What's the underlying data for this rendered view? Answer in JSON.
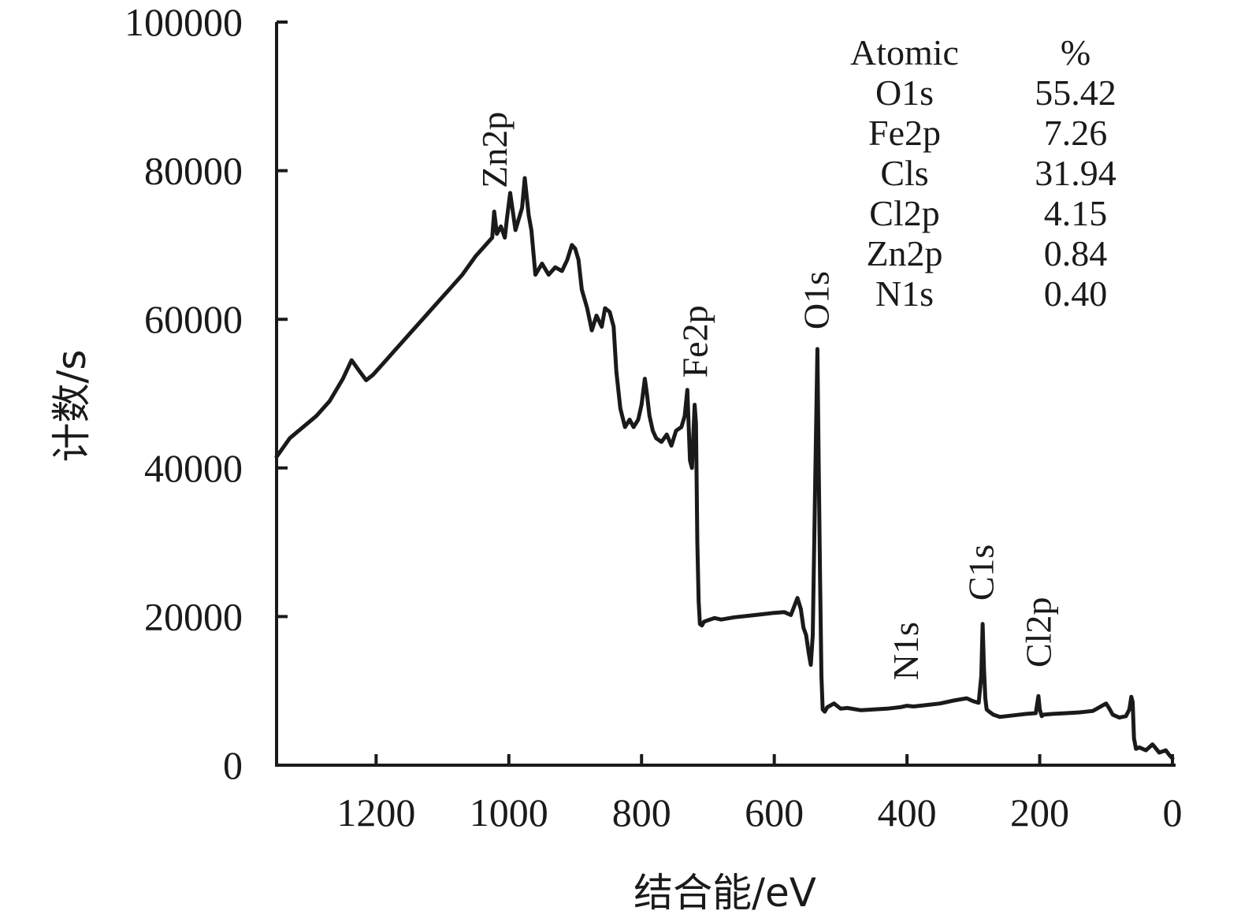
{
  "chart_data": {
    "type": "line",
    "title": "",
    "xlabel": "结合能/eV",
    "ylabel": "计数/s",
    "xlim": [
      1350,
      0
    ],
    "ylim": [
      0,
      100000
    ],
    "x_reversed": true,
    "x_ticks": [
      1200,
      1000,
      800,
      600,
      400,
      200,
      0
    ],
    "y_ticks": [
      0,
      20000,
      40000,
      60000,
      80000,
      100000
    ],
    "grid": false,
    "legend": "none",
    "color": "#1a1a1a",
    "series": [
      {
        "x": [
          1350,
          1330,
          1310,
          1290,
          1270,
          1250,
          1237,
          1225,
          1215,
          1205,
          1190,
          1170,
          1150,
          1130,
          1110,
          1090,
          1070,
          1050,
          1035,
          1025,
          1022,
          1018,
          1012,
          1006,
          1003,
          998,
          990,
          985,
          980,
          976,
          970,
          966,
          960,
          950,
          940,
          930,
          920,
          912,
          905,
          900,
          895,
          890,
          882,
          875,
          868,
          860,
          855,
          848,
          842,
          838,
          832,
          825,
          818,
          812,
          805,
          800,
          795,
          792,
          788,
          783,
          778,
          770,
          762,
          755,
          748,
          740,
          735,
          731,
          727,
          724,
          720,
          718,
          716,
          714,
          712,
          709,
          706,
          700,
          690,
          680,
          660,
          640,
          620,
          600,
          585,
          575,
          565,
          560,
          556,
          552,
          548,
          545,
          542,
          538,
          535,
          533,
          531,
          529,
          527,
          524,
          520,
          510,
          500,
          490,
          470,
          450,
          430,
          410,
          400,
          390,
          370,
          350,
          330,
          310,
          300,
          292,
          288,
          286,
          284,
          282,
          280,
          276,
          270,
          260,
          240,
          220,
          206,
          202,
          200,
          197,
          194,
          180,
          160,
          140,
          120,
          100,
          95,
          90,
          80,
          70,
          65,
          62,
          60,
          58,
          55,
          50,
          40,
          30,
          20,
          10,
          5,
          0
        ],
        "y": [
          41500,
          44000,
          45500,
          47000,
          49000,
          52000,
          54500,
          53000,
          51800,
          52500,
          54000,
          56000,
          58000,
          60000,
          62000,
          64000,
          66000,
          68500,
          70000,
          71000,
          74500,
          71500,
          72500,
          71000,
          73500,
          77000,
          72000,
          73500,
          75000,
          79000,
          74000,
          72000,
          66000,
          67500,
          66000,
          67000,
          66500,
          68000,
          70000,
          69500,
          68000,
          64000,
          61500,
          58500,
          60500,
          59000,
          61500,
          61000,
          59000,
          53000,
          48000,
          45500,
          46500,
          45500,
          46500,
          48500,
          52000,
          50000,
          47000,
          45000,
          44000,
          43500,
          44500,
          43000,
          45000,
          45500,
          47000,
          50500,
          41000,
          40000,
          48500,
          46000,
          30000,
          22000,
          19000,
          18800,
          19300,
          19500,
          19800,
          19600,
          19900,
          20100,
          20300,
          20500,
          20600,
          20200,
          22500,
          21000,
          18500,
          17500,
          15000,
          13500,
          17500,
          40000,
          56000,
          40000,
          25000,
          12000,
          7500,
          7200,
          7800,
          8300,
          7600,
          7700,
          7400,
          7500,
          7600,
          7800,
          8000,
          7900,
          8100,
          8300,
          8700,
          9000,
          8600,
          8400,
          12000,
          19000,
          13000,
          9000,
          7500,
          7200,
          6800,
          6500,
          6700,
          6900,
          7000,
          9300,
          7500,
          6600,
          6800,
          6900,
          7000,
          7100,
          7300,
          8300,
          7600,
          6800,
          6400,
          6600,
          7500,
          9200,
          8500,
          3600,
          2200,
          2400,
          2000,
          2800,
          1700,
          2000,
          1400,
          900
        ]
      }
    ],
    "peak_labels": [
      {
        "text": "Zn2p",
        "x": 1020,
        "y": 77000
      },
      {
        "text": "Fe2p",
        "x": 718,
        "y": 51500
      },
      {
        "text": "O1s",
        "x": 535,
        "y": 58000
      },
      {
        "text": "N1s",
        "x": 400,
        "y": 10800
      },
      {
        "text": "C1s",
        "x": 287,
        "y": 21500
      },
      {
        "text": "Cl2p",
        "x": 200,
        "y": 12500
      }
    ],
    "table": {
      "headers": [
        "Atomic",
        "%"
      ],
      "rows": [
        [
          "O1s",
          "55.42"
        ],
        [
          "Fe2p",
          "7.26"
        ],
        [
          "Cls",
          "31.94"
        ],
        [
          "Cl2p",
          "4.15"
        ],
        [
          "Zn2p",
          "0.84"
        ],
        [
          "N1s",
          "0.40"
        ]
      ]
    }
  }
}
